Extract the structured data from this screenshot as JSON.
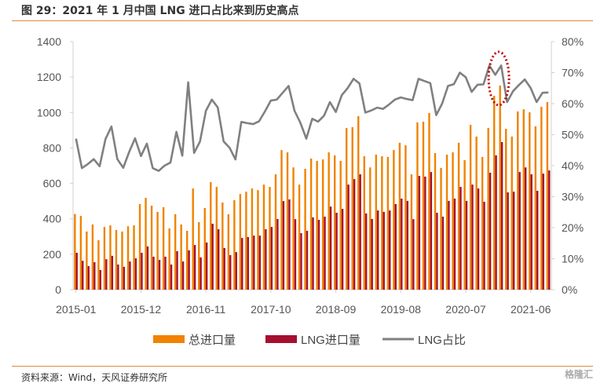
{
  "title": "图 29：2021 年 1 月中国 LNG 进口占比来到历史高点",
  "source": "资料来源：Wind，天风证券研究所",
  "watermark": "格隆汇",
  "chart_data": {
    "type": "bar+line",
    "title": "",
    "xlabel": "",
    "ylabel": "",
    "x_tick_labels": [
      "2015-01",
      "2015-12",
      "2016-11",
      "2017-10",
      "2018-09",
      "2019-08",
      "2020-07",
      "2021-06"
    ],
    "x_start": "2015-01",
    "x_end": "2021-09",
    "ylim_left": [
      0,
      1400
    ],
    "yticks_left": [
      "0",
      "200",
      "400",
      "600",
      "800",
      "1000",
      "1200",
      "1400"
    ],
    "ylim_right": [
      0,
      80
    ],
    "yticks_right": [
      "0%",
      "10%",
      "20%",
      "30%",
      "40%",
      "50%",
      "60%",
      "70%",
      "80%"
    ],
    "grid": false,
    "legend_position": "bottom",
    "annotation": "dotted red ellipse around 2021-01 peak",
    "colors": {
      "total": "#f08300",
      "lng": "#a5102e",
      "share": "#808080",
      "annotation": "#c00000"
    },
    "series": [
      {
        "name": "总进口量",
        "axis": "left",
        "type": "bar",
        "values": [
          427,
          416,
          328,
          368,
          279,
          354,
          363,
          337,
          328,
          358,
          363,
          483,
          518,
          474,
          439,
          465,
          346,
          426,
          368,
          332,
          571,
          381,
          461,
          607,
          580,
          492,
          426,
          505,
          540,
          553,
          571,
          562,
          593,
          580,
          651,
          788,
          775,
          690,
          593,
          682,
          740,
          727,
          735,
          775,
          758,
          727,
          912,
          917,
          979,
          753,
          690,
          762,
          753,
          749,
          788,
          829,
          815,
          651,
          944,
          948,
          997,
          771,
          687,
          762,
          775,
          829,
          731,
          930,
          864,
          749,
          913,
          1094,
          1152,
          908,
          864,
          1006,
          1018,
          1001,
          922,
          1032,
          1059
        ]
      },
      {
        "name": "LNG进口量",
        "axis": "left",
        "type": "bar",
        "values": [
          208,
          163,
          133,
          155,
          111,
          172,
          191,
          142,
          129,
          159,
          177,
          208,
          244,
          186,
          168,
          186,
          142,
          217,
          159,
          222,
          252,
          182,
          266,
          372,
          341,
          235,
          195,
          212,
          292,
          297,
          305,
          305,
          341,
          354,
          399,
          500,
          509,
          398,
          319,
          332,
          408,
          394,
          412,
          469,
          434,
          456,
          593,
          624,
          651,
          430,
          399,
          447,
          439,
          447,
          483,
          514,
          501,
          398,
          642,
          638,
          664,
          434,
          412,
          501,
          514,
          580,
          501,
          593,
          571,
          496,
          660,
          758,
          833,
          549,
          553,
          664,
          690,
          651,
          558,
          655,
          673
        ]
      },
      {
        "name": "LNG占比",
        "axis": "right",
        "type": "line",
        "unit": "%",
        "values": [
          48.7,
          39.2,
          40.5,
          42.1,
          39.8,
          48.6,
          52.6,
          42.1,
          39.3,
          44.4,
          48.8,
          43.1,
          47.1,
          39.2,
          38.3,
          40.0,
          41.0,
          50.9,
          43.2,
          66.9,
          44.1,
          47.8,
          57.7,
          61.3,
          58.8,
          47.8,
          45.8,
          42.0,
          54.1,
          53.7,
          53.4,
          54.3,
          57.5,
          61.0,
          61.3,
          63.5,
          65.7,
          57.7,
          53.8,
          48.7,
          55.1,
          54.2,
          56.1,
          60.5,
          57.3,
          62.7,
          65.0,
          68.0,
          66.5,
          57.1,
          57.8,
          58.7,
          58.3,
          59.7,
          61.3,
          62.0,
          61.5,
          61.1,
          68.0,
          67.3,
          66.6,
          56.3,
          60.0,
          65.7,
          66.3,
          70.0,
          68.5,
          63.8,
          66.1,
          66.2,
          72.3,
          69.3,
          72.3,
          60.5,
          64.0,
          66.0,
          67.8,
          65.0,
          60.5,
          63.5,
          63.6
        ]
      }
    ]
  }
}
